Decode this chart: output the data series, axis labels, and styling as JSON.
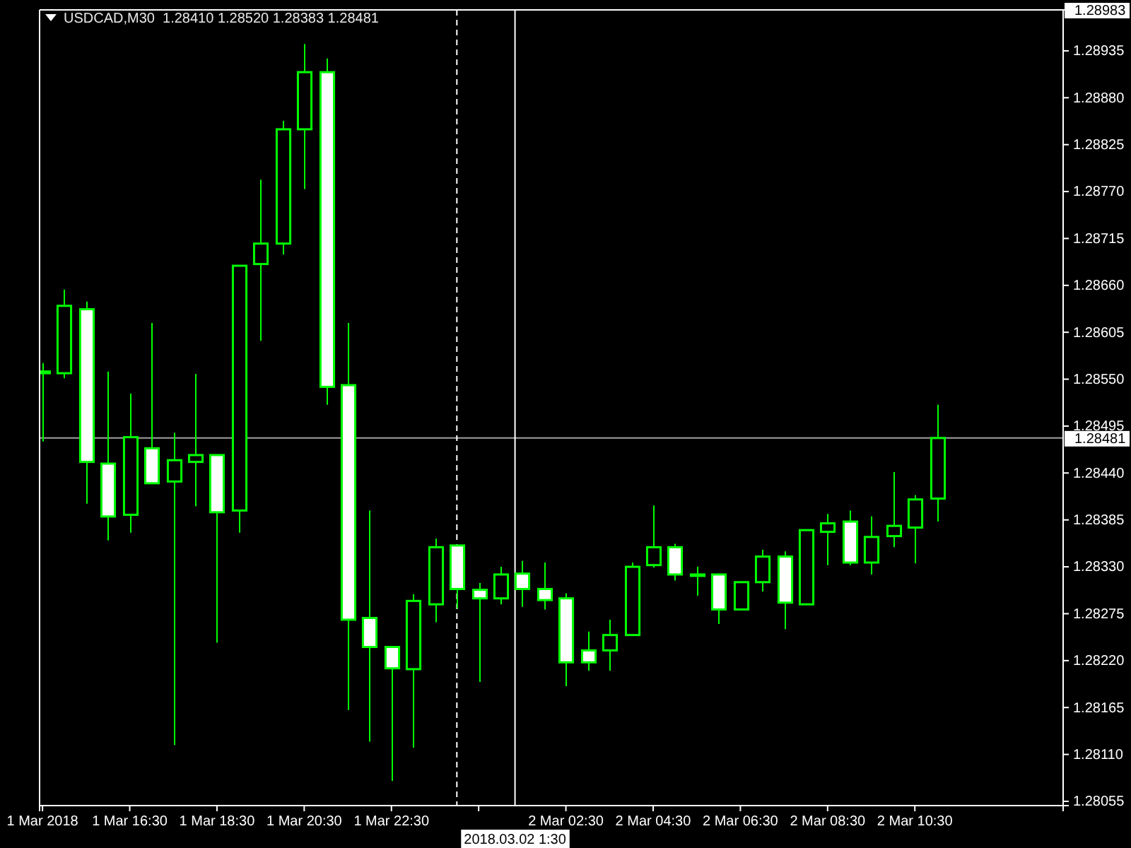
{
  "chart_data": {
    "type": "candlestick",
    "title": "USDCAD,M30  1.28410 1.28520 1.28383 1.28481",
    "color": "#00ff00",
    "x": [
      "2018-03-01T14:30",
      "2018-03-01T15:00",
      "2018-03-01T15:30",
      "2018-03-01T16:00",
      "2018-03-01T16:30",
      "2018-03-01T17:00",
      "2018-03-01T17:30",
      "2018-03-01T18:00",
      "2018-03-01T18:30",
      "2018-03-01T19:00",
      "2018-03-01T19:30",
      "2018-03-01T20:00",
      "2018-03-01T20:30",
      "2018-03-01T21:00",
      "2018-03-01T21:30",
      "2018-03-01T22:00",
      "2018-03-01T22:30",
      "2018-03-01T23:00",
      "2018-03-01T23:30",
      "2018-03-02T00:00",
      "2018-03-02T00:30",
      "2018-03-02T01:00",
      "2018-03-02T01:30",
      "2018-03-02T02:00",
      "2018-03-02T02:30",
      "2018-03-02T03:00",
      "2018-03-02T03:30",
      "2018-03-02T04:00",
      "2018-03-02T04:30",
      "2018-03-02T05:00",
      "2018-03-02T05:30",
      "2018-03-02T06:00",
      "2018-03-02T06:30",
      "2018-03-02T07:00",
      "2018-03-02T07:30",
      "2018-03-02T08:00",
      "2018-03-02T08:30",
      "2018-03-02T09:00",
      "2018-03-02T09:30",
      "2018-03-02T10:00",
      "2018-03-02T10:30",
      "2018-03-02T11:00"
    ],
    "ohlc": [
      [
        1.28559,
        1.28569,
        1.28477,
        1.28557
      ],
      [
        1.28557,
        1.28655,
        1.28551,
        1.28636
      ],
      [
        1.28632,
        1.28641,
        1.28404,
        1.28453
      ],
      [
        1.28451,
        1.28559,
        1.28361,
        1.28389
      ],
      [
        1.28391,
        1.28533,
        1.2837,
        1.28482
      ],
      [
        1.28469,
        1.28616,
        1.28427,
        1.28428
      ],
      [
        1.2843,
        1.28487,
        1.28121,
        1.28455
      ],
      [
        1.28453,
        1.28556,
        1.28401,
        1.28461
      ],
      [
        1.28461,
        1.28461,
        1.28241,
        1.28394
      ],
      [
        1.28396,
        1.28683,
        1.2837,
        1.28683
      ],
      [
        1.28685,
        1.28784,
        1.28595,
        1.28709
      ],
      [
        1.28709,
        1.28853,
        1.28696,
        1.28843
      ],
      [
        1.28843,
        1.28943,
        1.28773,
        1.2891
      ],
      [
        1.2891,
        1.28926,
        1.2852,
        1.28541
      ],
      [
        1.28543,
        1.28616,
        1.28162,
        1.28268
      ],
      [
        1.2827,
        1.28396,
        1.28125,
        1.28236
      ],
      [
        1.28236,
        1.28236,
        1.28079,
        1.28211
      ],
      [
        1.2821,
        1.28298,
        1.28118,
        1.2829
      ],
      [
        1.28286,
        1.28363,
        1.28265,
        1.28353
      ],
      [
        1.28355,
        1.28355,
        1.28281,
        1.28304
      ],
      [
        1.28303,
        1.28311,
        1.28195,
        1.28293
      ],
      [
        1.28293,
        1.2833,
        1.28286,
        1.28321
      ],
      [
        1.28322,
        1.28337,
        1.28283,
        1.28304
      ],
      [
        1.28304,
        1.28335,
        1.2828,
        1.28291
      ],
      [
        1.28293,
        1.28299,
        1.2819,
        1.28218
      ],
      [
        1.28232,
        1.28254,
        1.28208,
        1.28218
      ],
      [
        1.28232,
        1.28268,
        1.28208,
        1.2825
      ],
      [
        1.2825,
        1.28335,
        1.2825,
        1.2833
      ],
      [
        1.28332,
        1.28402,
        1.28329,
        1.28353
      ],
      [
        1.28353,
        1.28357,
        1.28314,
        1.28321
      ],
      [
        1.28321,
        1.2833,
        1.28296,
        1.28321
      ],
      [
        1.28321,
        1.28322,
        1.28263,
        1.2828
      ],
      [
        1.2828,
        1.28312,
        1.2828,
        1.28312
      ],
      [
        1.28312,
        1.2835,
        1.28301,
        1.28342
      ],
      [
        1.28342,
        1.28348,
        1.28257,
        1.28288
      ],
      [
        1.28286,
        1.28373,
        1.28286,
        1.28373
      ],
      [
        1.28371,
        1.28392,
        1.28332,
        1.28381
      ],
      [
        1.28383,
        1.28396,
        1.28332,
        1.28335
      ],
      [
        1.28335,
        1.28389,
        1.28321,
        1.28365
      ],
      [
        1.28366,
        1.28441,
        1.28353,
        1.28378
      ],
      [
        1.28376,
        1.28414,
        1.28334,
        1.28409
      ],
      [
        1.2841,
        1.2852,
        1.28383,
        1.28481
      ]
    ],
    "xlim": [
      "2018-03-01T14:26",
      "2018-03-02T13:54"
    ],
    "xticks": [
      {
        "value": "2018-03-01T14:30",
        "label": "1 Mar 2018"
      },
      {
        "value": "2018-03-01T16:30",
        "label": "1 Mar 16:30"
      },
      {
        "value": "2018-03-01T18:30",
        "label": "1 Mar 18:30"
      },
      {
        "value": "2018-03-01T20:30",
        "label": "1 Mar 20:30"
      },
      {
        "value": "2018-03-01T22:30",
        "label": "1 Mar 22:30"
      },
      {
        "value": "2018-03-02T00:30",
        "label": null
      },
      {
        "value": "2018-03-02T02:30",
        "label": "2 Mar 02:30"
      },
      {
        "value": "2018-03-02T04:30",
        "label": "2 Mar 04:30"
      },
      {
        "value": "2018-03-02T06:30",
        "label": "2 Mar 06:30"
      },
      {
        "value": "2018-03-02T08:30",
        "label": "2 Mar 08:30"
      },
      {
        "value": "2018-03-02T10:30",
        "label": "2 Mar 10:30"
      }
    ],
    "ylim": [
      1.2805,
      1.28983
    ],
    "yticks": [
      1.28935,
      {
        "value": 1.2888,
        "label": "1.28880"
      },
      1.28825,
      {
        "value": 1.2877,
        "label": "1.28770"
      },
      1.28715,
      {
        "value": 1.2866,
        "label": "1.28660"
      },
      1.28605,
      {
        "value": 1.2855,
        "label": "1.28550"
      },
      1.28495,
      {
        "value": 1.2844,
        "label": "1.28440"
      },
      1.28385,
      {
        "value": 1.2833,
        "label": "1.28330"
      },
      1.28275,
      {
        "value": 1.2822,
        "label": "1.28220"
      },
      1.28165,
      {
        "value": 1.2811,
        "label": "1.28110"
      },
      1.28055
    ],
    "ref_lines": [
      {
        "axis": "y",
        "value": 1.28983,
        "label": "1.28983",
        "color": "#ffffff"
      },
      {
        "axis": "y",
        "value": 1.28481,
        "label": "1.28481",
        "color": "#a0a0a0"
      },
      {
        "axis": "x",
        "value": "2018-03-02T00:00",
        "label": null,
        "color": "#ffffff",
        "line_style": "dashed"
      },
      {
        "axis": "x",
        "value": "2018-03-02T01:20",
        "label": "2018.03.02 1:30",
        "color": "#ffffff",
        "line_style": "solid"
      }
    ]
  }
}
